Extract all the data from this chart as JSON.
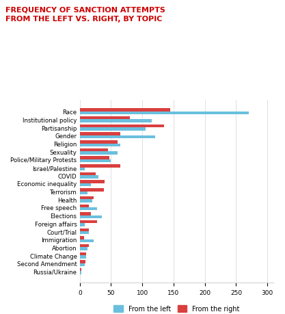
{
  "title": "FREQUENCY OF SANCTION ATTEMPTS\nFROM THE LEFT VS. RIGHT, BY TOPIC",
  "categories": [
    "Race",
    "Institutional policy",
    "Partisanship",
    "Gender",
    "Religion",
    "Sexuality",
    "Police/Military Protests",
    "Israel/Palestine",
    "COVID",
    "Economic inequality",
    "Terrorism",
    "Health",
    "Free speech",
    "Elections",
    "Foreign affairs",
    "Court/Trial",
    "Immigration",
    "Abortion",
    "Climate Change",
    "Second Amendment",
    "Russia/Ukraine"
  ],
  "left_values": [
    270,
    115,
    105,
    120,
    65,
    60,
    50,
    8,
    30,
    18,
    12,
    20,
    28,
    35,
    8,
    15,
    22,
    12,
    10,
    8,
    2
  ],
  "right_values": [
    145,
    80,
    135,
    65,
    60,
    45,
    47,
    65,
    25,
    40,
    38,
    22,
    15,
    18,
    28,
    15,
    7,
    14,
    10,
    9,
    2
  ],
  "left_color": "#6BBFDE",
  "right_color": "#D93F3F",
  "title_color": "#CC0000",
  "xlim": [
    0,
    310
  ],
  "xticks": [
    0,
    50,
    100,
    150,
    200,
    250,
    300
  ],
  "legend_left": "From the left",
  "legend_right": "From the right",
  "bar_height": 0.38,
  "figsize": [
    4.17,
    4.6
  ],
  "dpi": 100
}
